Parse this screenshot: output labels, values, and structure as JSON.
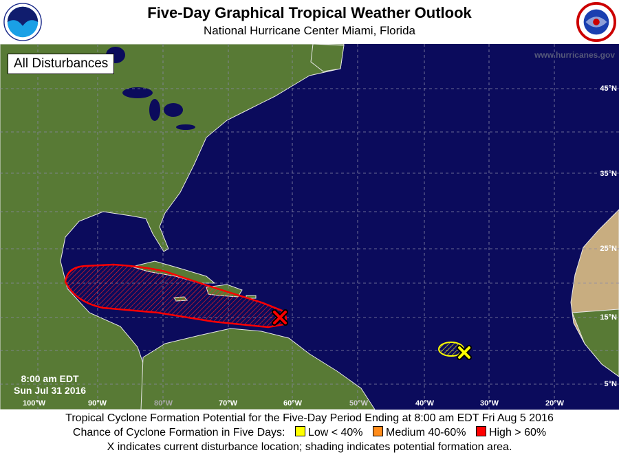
{
  "header": {
    "title": "Five-Day Graphical Tropical Weather Outlook",
    "subtitle": "National Hurricane Center  Miami, Florida",
    "left_logo": "NOAA",
    "right_logo": "National Weather Service"
  },
  "map": {
    "view_label": "All Disturbances",
    "website": "www.hurricanes.gov",
    "issued_time": "8:00 am EDT",
    "issued_date": "Sun Jul 31 2016",
    "longitudes": [
      "100°W",
      "90°W",
      "80°W",
      "70°W",
      "60°W",
      "50°W",
      "40°W",
      "30°W",
      "20°W"
    ],
    "latitudes": [
      "45°N",
      "35°N",
      "25°N",
      "15°N",
      "5°N"
    ],
    "disturbances": [
      {
        "chance": "High",
        "color": "#ff0000"
      },
      {
        "chance": "Low",
        "color": "#ffff00"
      }
    ],
    "colors": {
      "ocean": "#0b0b5c",
      "land": "#4f6e2e",
      "high": "#ff0000",
      "low": "#ffff00",
      "medium": "#ff8c1a"
    }
  },
  "footer": {
    "line1": "Tropical Cyclone Formation Potential for the Five-Day Period Ending at 8:00 am EDT Fri Aug 5 2016",
    "line2_prefix": "Chance of Cyclone Formation in Five Days:",
    "legend": [
      {
        "label": "Low < 40%",
        "color": "#ffff00"
      },
      {
        "label": "Medium 40-60%",
        "color": "#ff8c1a"
      },
      {
        "label": "High > 60%",
        "color": "#ff0000"
      }
    ],
    "line3": "X indicates current disturbance location; shading indicates potential formation area."
  }
}
